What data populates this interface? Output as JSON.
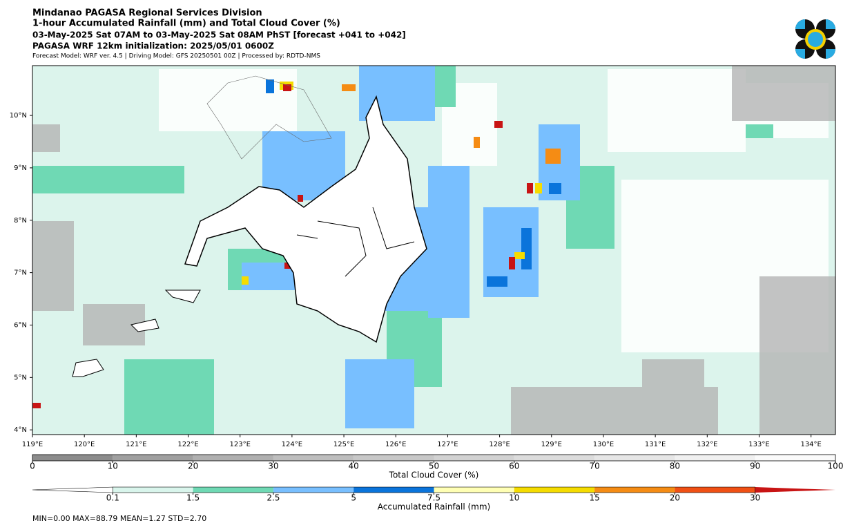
{
  "header": {
    "title": "Mindanao PAGASA Regional Services Division",
    "subtitle": "1-hour Accumulated Rainfall (mm) and Total Cloud Cover (%)",
    "period": "03-May-2025 Sat 07AM to 03-May-2025 Sat 08AM PhST [forecast +041 to +042]",
    "init": "PAGASA WRF 12km initialization: 2025/05/01 0600Z",
    "model": "Forecast Model: WRF ver. 4.5 | Driving Model: GFS 20250501 00Z | Processed by: RDTD-NMS"
  },
  "map": {
    "xlim": [
      119,
      134.47
    ],
    "ylim": [
      3.91,
      10.95
    ],
    "xticks": [
      {
        "value": 119,
        "label": "119°E"
      },
      {
        "value": 120,
        "label": "120°E"
      },
      {
        "value": 121,
        "label": "121°E"
      },
      {
        "value": 122,
        "label": "122°E"
      },
      {
        "value": 123,
        "label": "123°E"
      },
      {
        "value": 124,
        "label": "124°E"
      },
      {
        "value": 125,
        "label": "125°E"
      },
      {
        "value": 126,
        "label": "126°E"
      },
      {
        "value": 127,
        "label": "127°E"
      },
      {
        "value": 128,
        "label": "128°E"
      },
      {
        "value": 129,
        "label": "129°E"
      },
      {
        "value": 130,
        "label": "130°E"
      },
      {
        "value": 131,
        "label": "131°E"
      },
      {
        "value": 132,
        "label": "132°E"
      },
      {
        "value": 133,
        "label": "133°E"
      },
      {
        "value": 134,
        "label": "134°E"
      }
    ],
    "yticks": [
      {
        "value": 4,
        "label": "4°N"
      },
      {
        "value": 5,
        "label": "5°N"
      },
      {
        "value": 6,
        "label": "6°N"
      },
      {
        "value": 7,
        "label": "7°N"
      },
      {
        "value": 8,
        "label": "8°N"
      },
      {
        "value": 9,
        "label": "9°N"
      },
      {
        "value": 10,
        "label": "10°N"
      }
    ]
  },
  "cloud_colorbar": {
    "label": "Total Cloud Cover (%)",
    "ticks": [
      0,
      10,
      20,
      30,
      40,
      50,
      60,
      70,
      80,
      90,
      100
    ],
    "colors": [
      "#8c8c8c",
      "#a0a0a0",
      "#b0b0b0",
      "#bebebe",
      "#c8c8c8",
      "#d2d2d2",
      "#dcdcdc",
      "#e6e6e6",
      "#f0f0f0",
      "#fafafa"
    ]
  },
  "rain_colorbar": {
    "label": "Accumulated Rainfall (mm)",
    "bounds": [
      0.1,
      1.5,
      2.5,
      5,
      7.5,
      10,
      15,
      20,
      30
    ],
    "colors": [
      "#d9f5ec",
      "#6fd9b4",
      "#78bfff",
      "#0a74db",
      "#ffffb4",
      "#f5dc00",
      "#f58c14",
      "#f05014"
    ],
    "under_color": "#ffffff",
    "over_color": "#c81414"
  },
  "stats": "MIN=0.00   MAX=88.79   MEAN=1.27   STD=2.70"
}
